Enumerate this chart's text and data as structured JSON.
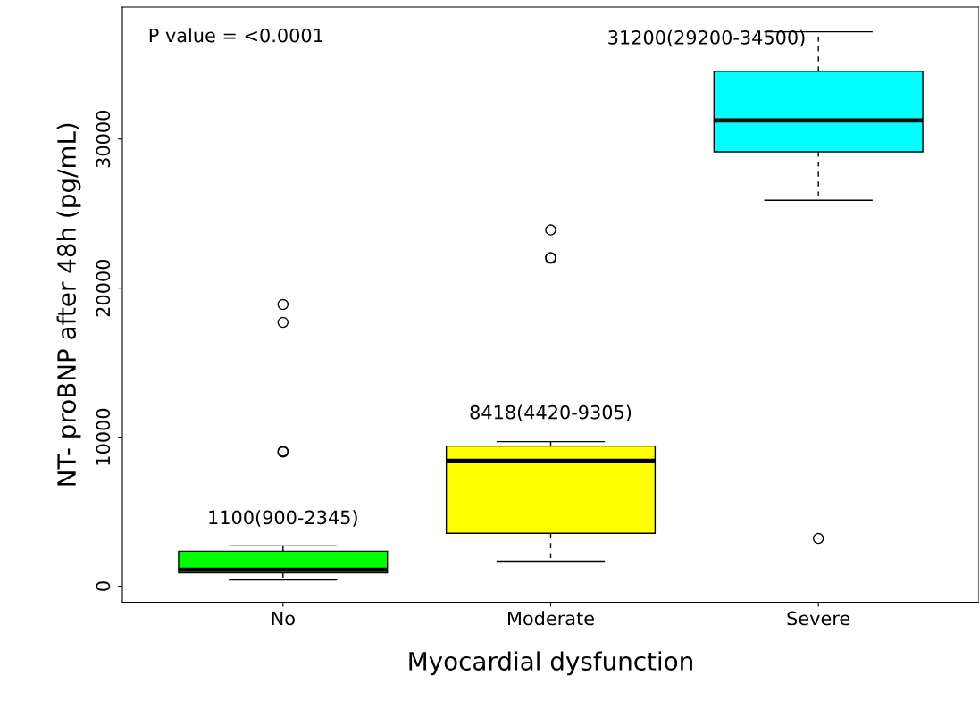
{
  "chart_data": {
    "type": "box",
    "xlabel": "Myocardial dysfunction",
    "ylabel": "NT- proBNP after 48h (pg/mL)",
    "categories": [
      "No",
      "Moderate",
      "Severe"
    ],
    "colors": [
      "#00ff00",
      "#ffff00",
      "#00ffff"
    ],
    "boxes": [
      {
        "low": 420,
        "q1": 900,
        "median": 1100,
        "q3": 2345,
        "high": 2700,
        "outliers": [
          18900,
          17700,
          9050,
          9000
        ]
      },
      {
        "low": 1680,
        "q1": 3550,
        "median": 8400,
        "q3": 9400,
        "high": 9700,
        "outliers": [
          23900,
          22050,
          22000
        ]
      },
      {
        "low": 25900,
        "q1": 29150,
        "median": 31250,
        "q3": 34550,
        "high": 37200,
        "outliers": [
          3200
        ]
      }
    ],
    "ylim": [
      -1080,
      38850
    ],
    "yticks": [
      0,
      10000,
      20000,
      30000
    ],
    "grid": false,
    "annotations": [
      "P value = <0.0001",
      "1100(900-2345)",
      "8418(4420-9305)",
      "31200(29200-34500)"
    ]
  }
}
